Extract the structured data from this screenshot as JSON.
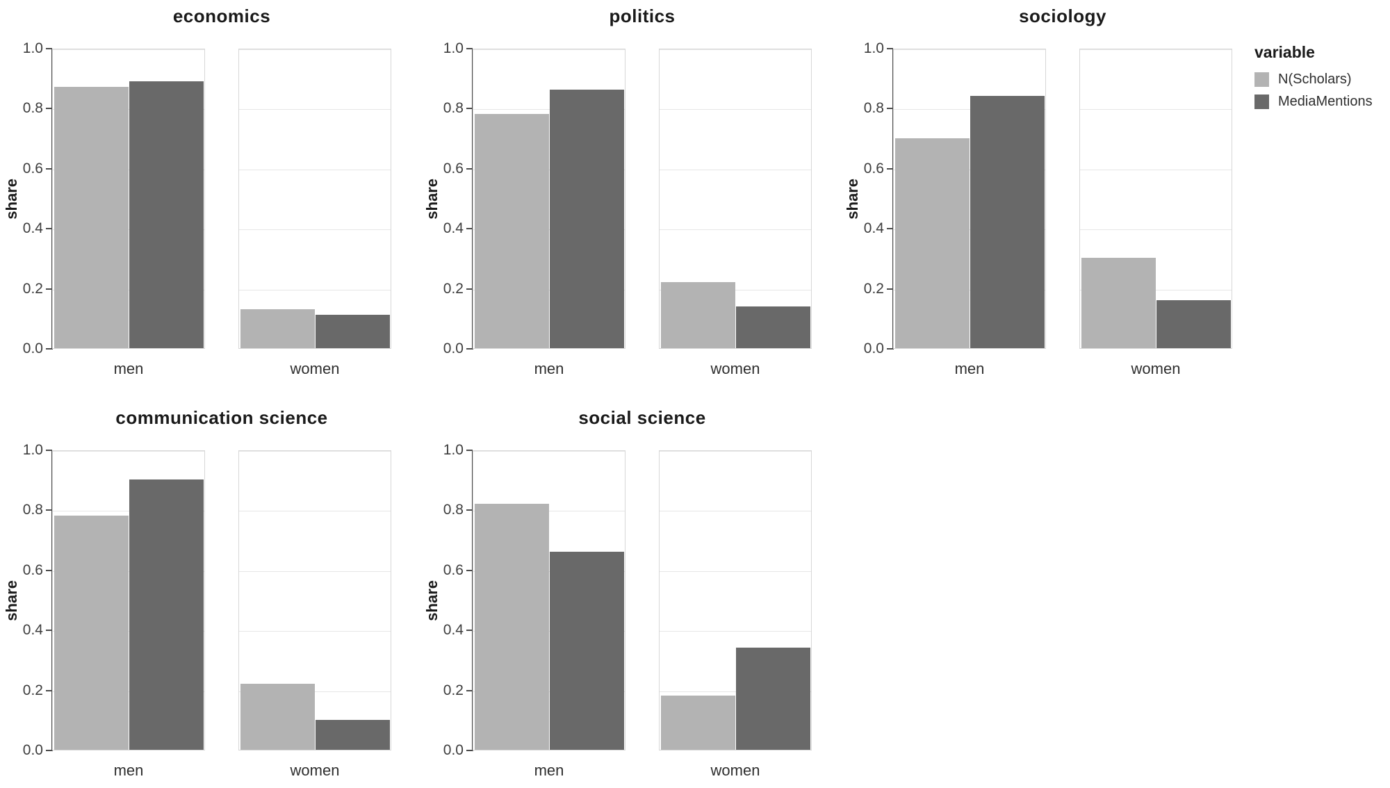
{
  "legend": {
    "title": "variable",
    "items": [
      {
        "label": "N(Scholars)",
        "color": "#b3b3b3"
      },
      {
        "label": "MediaMentions",
        "color": "#696969"
      }
    ]
  },
  "chart_data": {
    "type": "bar",
    "title": "",
    "ylabel": "share",
    "xlabel": "",
    "ylim": [
      0,
      1
    ],
    "ytick_labels": [
      "0.0",
      "0.2",
      "0.4",
      "0.6",
      "0.8",
      "1.0"
    ],
    "ytick_values": [
      0.0,
      0.2,
      0.4,
      0.6,
      0.8,
      1.0
    ],
    "grid": true,
    "legend_position": "right",
    "series_names": [
      "N(Scholars)",
      "MediaMentions"
    ],
    "series_colors": [
      "#b3b3b3",
      "#696969"
    ],
    "group_labels": [
      "men",
      "women"
    ],
    "facets": [
      {
        "title": "economics",
        "groups": [
          {
            "label": "men",
            "values": [
              0.87,
              0.89
            ]
          },
          {
            "label": "women",
            "values": [
              0.13,
              0.11
            ]
          }
        ]
      },
      {
        "title": "politics",
        "groups": [
          {
            "label": "men",
            "values": [
              0.78,
              0.86
            ]
          },
          {
            "label": "women",
            "values": [
              0.22,
              0.14
            ]
          }
        ]
      },
      {
        "title": "sociology",
        "groups": [
          {
            "label": "men",
            "values": [
              0.7,
              0.84
            ]
          },
          {
            "label": "women",
            "values": [
              0.3,
              0.16
            ]
          }
        ]
      },
      {
        "title": "communication science",
        "groups": [
          {
            "label": "men",
            "values": [
              0.78,
              0.9
            ]
          },
          {
            "label": "women",
            "values": [
              0.22,
              0.1
            ]
          }
        ]
      },
      {
        "title": "social science",
        "groups": [
          {
            "label": "men",
            "values": [
              0.82,
              0.66
            ]
          },
          {
            "label": "women",
            "values": [
              0.18,
              0.34
            ]
          }
        ]
      }
    ]
  }
}
